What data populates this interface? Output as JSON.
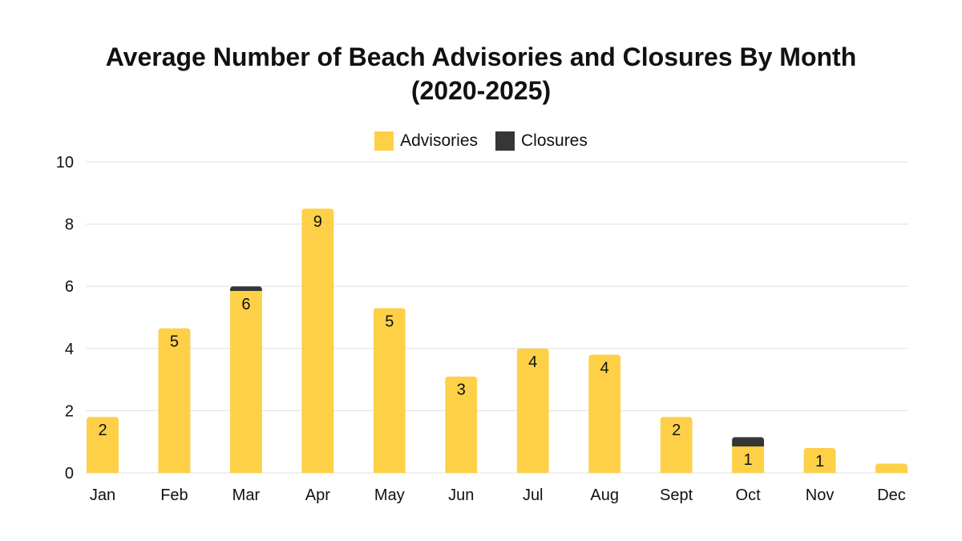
{
  "chart_data": {
    "type": "bar",
    "stacked": true,
    "title_lines": [
      "Average Number of Beach Advisories and Closures By Month",
      "(2020-2025)"
    ],
    "xlabel": "",
    "ylabel": "",
    "categories": [
      "Jan",
      "Feb",
      "Mar",
      "Apr",
      "May",
      "Jun",
      "Jul",
      "Aug",
      "Sept",
      "Oct",
      "Nov",
      "Dec"
    ],
    "series": [
      {
        "name": "Advisories",
        "color": "#FDD047",
        "values": [
          1.8,
          4.65,
          5.85,
          8.5,
          5.3,
          3.1,
          4.0,
          3.8,
          1.8,
          0.85,
          0.8,
          0.3
        ]
      },
      {
        "name": "Closures",
        "color": "#363636",
        "values": [
          0,
          0,
          0.15,
          0,
          0,
          0,
          0,
          0,
          0,
          0.3,
          0,
          0
        ]
      }
    ],
    "data_labels": [
      "2",
      "5",
      "6",
      "9",
      "5",
      "3",
      "4",
      "4",
      "2",
      "1",
      "1",
      ""
    ],
    "ylim": [
      0,
      10
    ],
    "yticks": [
      0,
      2,
      4,
      6,
      8,
      10
    ],
    "grid": true,
    "legend_position": "top-center"
  }
}
